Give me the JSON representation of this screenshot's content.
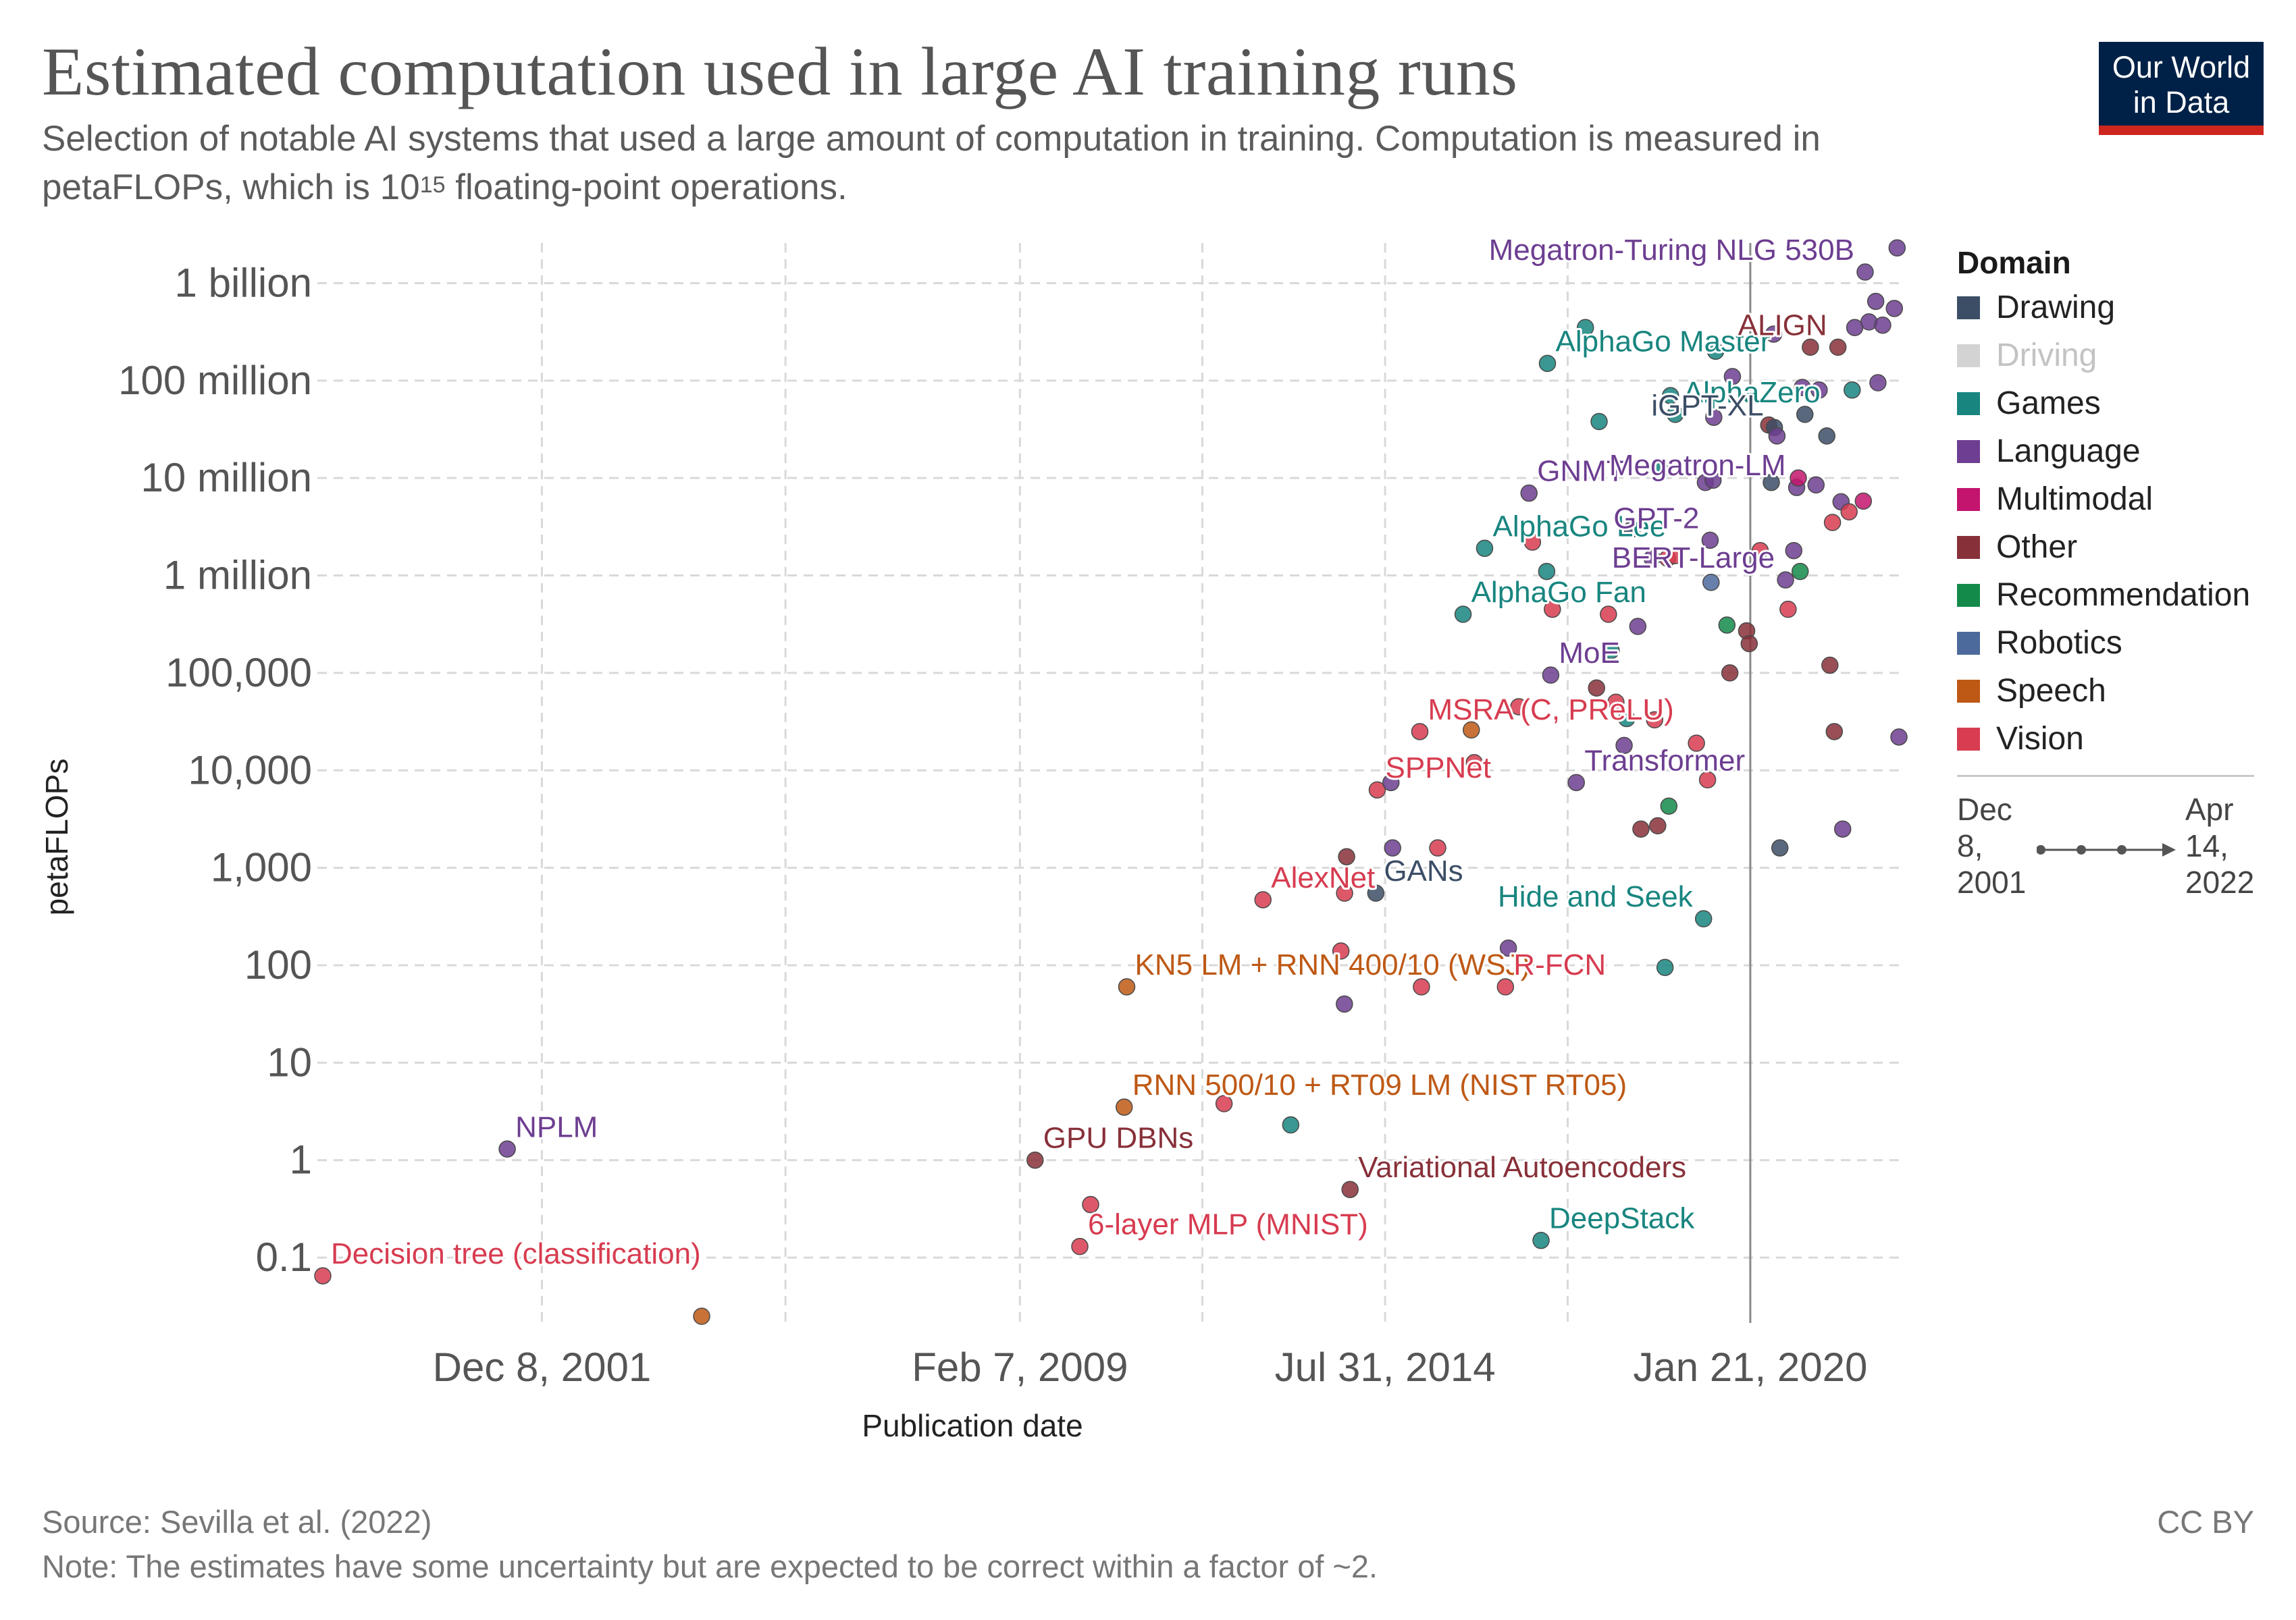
{
  "header": {
    "title": "Estimated computation used in large AI training runs",
    "subtitle_before_sup": "Selection of notable AI systems that used a large amount of computation in training. Computation is measured in petaFLOPs, which is 10",
    "subtitle_sup": "15",
    "subtitle_after_sup": " floating-point operations.",
    "logo_line1": "Our World",
    "logo_line2": "in Data"
  },
  "footer": {
    "source": "Source: Sevilla et al. (2022)",
    "note": "Note: The estimates have some uncertainty but are expected to be correct within a factor of ~2.",
    "license": "CC BY"
  },
  "legend": {
    "title": "Domain",
    "items": [
      {
        "label": "Drawing",
        "color": "#3c4e66",
        "dim": false
      },
      {
        "label": "Driving",
        "color": "#d3d3d3",
        "dim": true
      },
      {
        "label": "Games",
        "color": "#18857f",
        "dim": false
      },
      {
        "label": "Language",
        "color": "#6d3e91",
        "dim": false
      },
      {
        "label": "Multimodal",
        "color": "#c3156d",
        "dim": false
      },
      {
        "label": "Other",
        "color": "#883039",
        "dim": false
      },
      {
        "label": "Recommendation",
        "color": "#138a4a",
        "dim": false
      },
      {
        "label": "Robotics",
        "color": "#4c6a9c",
        "dim": false
      },
      {
        "label": "Speech",
        "color": "#be5915",
        "dim": false
      },
      {
        "label": "Vision",
        "color": "#d73c50",
        "dim": false
      }
    ]
  },
  "timeline": {
    "start": "Dec\n8,\n2001",
    "end": "Apr\n14,\n2022"
  },
  "chart_data": {
    "type": "scatter",
    "xlabel": "Publication date",
    "ylabel": "petaFLOPs",
    "xscale": "date",
    "yscale": "log",
    "xlim": [
      "1998-08-26",
      "2022-04-14"
    ],
    "ylim": [
      0.02,
      2000000000
    ],
    "grid": true,
    "legend_position": "right",
    "x_ticks": [
      {
        "date": "2001-12-08",
        "label": "Dec 8, 2001"
      },
      {
        "date": "2009-02-07",
        "label": "Feb 7, 2009"
      },
      {
        "date": "2014-07-31",
        "label": "Jul 31, 2014"
      },
      {
        "date": "2020-01-21",
        "label": "Jan 21, 2020"
      }
    ],
    "x_minor_grid": [
      "2005-08-03",
      "2011-11-03",
      "2017-04-26"
    ],
    "y_ticks": [
      {
        "value": 0.1,
        "label": "0.1"
      },
      {
        "value": 1,
        "label": "1"
      },
      {
        "value": 10,
        "label": "10"
      },
      {
        "value": 100,
        "label": "100"
      },
      {
        "value": 1000,
        "label": "1,000"
      },
      {
        "value": 10000,
        "label": "10,000"
      },
      {
        "value": 100000,
        "label": "100,000"
      },
      {
        "value": 1000000,
        "label": "1 million"
      },
      {
        "value": 10000000,
        "label": "10 million"
      },
      {
        "value": 100000000,
        "label": "100 million"
      },
      {
        "value": 1000000000,
        "label": "1 billion"
      }
    ],
    "reference_line": "2020-01-21",
    "points": [
      {
        "x": "1998-08-26",
        "y": 0.065,
        "domain": "Vision",
        "label": "Decision tree (classification)"
      },
      {
        "x": "2001-06-01",
        "y": 1.3,
        "domain": "Language",
        "label": "NPLM"
      },
      {
        "x": "2004-05-01",
        "y": 0.025,
        "domain": "Speech"
      },
      {
        "x": "2009-05-01",
        "y": 1.0,
        "domain": "Other",
        "label": "GPU DBNs"
      },
      {
        "x": "2010-01-01",
        "y": 0.13,
        "domain": "Vision",
        "label": "6-layer MLP (MNIST)"
      },
      {
        "x": "2010-03-01",
        "y": 0.35,
        "domain": "Vision"
      },
      {
        "x": "2010-09-01",
        "y": 3.5,
        "domain": "Speech",
        "label": "RNN 500/10 + RT09 LM (NIST RT05)"
      },
      {
        "x": "2010-09-15",
        "y": 60,
        "domain": "Speech",
        "label": "KN5 LM + RNN 400/10 (WSJ)"
      },
      {
        "x": "2012-03-01",
        "y": 3.8,
        "domain": "Vision"
      },
      {
        "x": "2012-09-30",
        "y": 470,
        "domain": "Vision",
        "label": "AlexNet"
      },
      {
        "x": "2013-03-01",
        "y": 2.3,
        "domain": "Games"
      },
      {
        "x": "2013-12-01",
        "y": 140,
        "domain": "Vision"
      },
      {
        "x": "2013-12-20",
        "y": 40,
        "domain": "Language"
      },
      {
        "x": "2013-12-21",
        "y": 550,
        "domain": "Vision"
      },
      {
        "x": "2014-01-20",
        "y": 0.5,
        "domain": "Other",
        "label": "Variational Autoencoders"
      },
      {
        "x": "2014-01-01",
        "y": 1300,
        "domain": "Other"
      },
      {
        "x": "2014-06-10",
        "y": 550,
        "domain": "Drawing",
        "label": "GANs"
      },
      {
        "x": "2014-06-18",
        "y": 6300,
        "domain": "Vision",
        "label": "SPPNet"
      },
      {
        "x": "2014-09-01",
        "y": 7500,
        "domain": "Language"
      },
      {
        "x": "2014-09-10",
        "y": 1600,
        "domain": "Language"
      },
      {
        "x": "2015-02-06",
        "y": 25000,
        "domain": "Vision",
        "label": "MSRA (C, PReLU)"
      },
      {
        "x": "2015-02-15",
        "y": 60,
        "domain": "Vision"
      },
      {
        "x": "2015-05-15",
        "y": 1600,
        "domain": "Vision"
      },
      {
        "x": "2015-10-01",
        "y": 400000,
        "domain": "Games",
        "label": "AlphaGo Fan"
      },
      {
        "x": "2015-11-15",
        "y": 26000,
        "domain": "Speech"
      },
      {
        "x": "2015-12-01",
        "y": 12000,
        "domain": "Vision"
      },
      {
        "x": "2016-01-27",
        "y": 1900000,
        "domain": "Games",
        "label": "AlphaGo Lee"
      },
      {
        "x": "2016-05-20",
        "y": 60,
        "domain": "Vision",
        "label": "R-FCN"
      },
      {
        "x": "2016-06-05",
        "y": 150,
        "domain": "Language"
      },
      {
        "x": "2016-08-01",
        "y": 45000,
        "domain": "Vision"
      },
      {
        "x": "2016-09-26",
        "y": 7000000,
        "domain": "Language",
        "label": "GNMT"
      },
      {
        "x": "2016-10-15",
        "y": 2200000,
        "domain": "Vision"
      },
      {
        "x": "2016-12-01",
        "y": 0.15,
        "domain": "Games",
        "label": "DeepStack"
      },
      {
        "x": "2017-01-23",
        "y": 95000,
        "domain": "Language",
        "label": "MoE"
      },
      {
        "x": "2017-01-01",
        "y": 1100000,
        "domain": "Games"
      },
      {
        "x": "2017-01-05",
        "y": 150000000,
        "domain": "Games",
        "label": "AlphaGo Master"
      },
      {
        "x": "2017-02-01",
        "y": 450000,
        "domain": "Vision"
      },
      {
        "x": "2017-06-12",
        "y": 7500,
        "domain": "Language",
        "label": "Transformer"
      },
      {
        "x": "2017-08-01",
        "y": 350000000,
        "domain": "Games"
      },
      {
        "x": "2017-10-01",
        "y": 70000,
        "domain": "Other"
      },
      {
        "x": "2017-10-15",
        "y": 38000000,
        "domain": "Games"
      },
      {
        "x": "2017-12-05",
        "y": 400000,
        "domain": "Vision"
      },
      {
        "x": "2017-12-20",
        "y": 170000,
        "domain": "Games"
      },
      {
        "x": "2018-01-15",
        "y": 50000,
        "domain": "Vision"
      },
      {
        "x": "2018-03-01",
        "y": 18000,
        "domain": "Language"
      },
      {
        "x": "2018-03-15",
        "y": 34000,
        "domain": "Games"
      },
      {
        "x": "2018-04-15",
        "y": 3000000,
        "domain": "Drawing"
      },
      {
        "x": "2018-05-15",
        "y": 300000,
        "domain": "Language"
      },
      {
        "x": "2018-06-01",
        "y": 2500,
        "domain": "Other"
      },
      {
        "x": "2018-08-01",
        "y": 1500000,
        "domain": "Language"
      },
      {
        "x": "2018-08-15",
        "y": 33000,
        "domain": "Vision"
      },
      {
        "x": "2018-09-01",
        "y": 2700,
        "domain": "Other"
      },
      {
        "x": "2018-09-15",
        "y": 12000000,
        "domain": "Games"
      },
      {
        "x": "2018-10-11",
        "y": 95,
        "domain": "Games"
      },
      {
        "x": "2018-10-25",
        "y": 1500000,
        "domain": "Vision"
      },
      {
        "x": "2018-11-01",
        "y": 4300,
        "domain": "Recommendation"
      },
      {
        "x": "2018-11-10",
        "y": 70000000,
        "domain": "Games"
      },
      {
        "x": "2018-12-05",
        "y": 1600000,
        "domain": "Vision"
      },
      {
        "x": "2018-12-06",
        "y": 45000000,
        "domain": "Games",
        "label": "AlphaZero"
      },
      {
        "x": "2019-04-01",
        "y": 19000,
        "domain": "Vision"
      },
      {
        "x": "2019-05-10",
        "y": 300,
        "domain": "Games",
        "label": "Hide and Seek"
      },
      {
        "x": "2019-05-20",
        "y": 9000000,
        "domain": "Language"
      },
      {
        "x": "2019-06-01",
        "y": 8000,
        "domain": "Vision"
      },
      {
        "x": "2019-06-15",
        "y": 2300000,
        "domain": "Language",
        "label": "GPT-2"
      },
      {
        "x": "2019-06-20",
        "y": 850000,
        "domain": "Robotics"
      },
      {
        "x": "2019-07-01",
        "y": 9500000,
        "domain": "Language"
      },
      {
        "x": "2019-07-05",
        "y": 42000000,
        "domain": "Language"
      },
      {
        "x": "2019-07-15",
        "y": 200000000,
        "domain": "Games"
      },
      {
        "x": "2019-09-15",
        "y": 310000,
        "domain": "Recommendation"
      },
      {
        "x": "2019-10-01",
        "y": 100000,
        "domain": "Other"
      },
      {
        "x": "2019-10-15",
        "y": 110000000,
        "domain": "Language"
      },
      {
        "x": "2020-01-01",
        "y": 270000,
        "domain": "Other"
      },
      {
        "x": "2020-01-15",
        "y": 200000,
        "domain": "Other"
      },
      {
        "x": "2020-03-15",
        "y": 1800000,
        "domain": "Vision"
      },
      {
        "x": "2020-05-01",
        "y": 35000000,
        "domain": "Other"
      },
      {
        "x": "2020-05-15",
        "y": 9000000,
        "domain": "Drawing"
      },
      {
        "x": "2020-05-28",
        "y": 300000000,
        "domain": "Language"
      },
      {
        "x": "2020-06-01",
        "y": 33000000,
        "domain": "Drawing",
        "label": "iGPT-XL"
      },
      {
        "x": "2020-06-15",
        "y": 27000000,
        "domain": "Language"
      },
      {
        "x": "2020-07-01",
        "y": 1600,
        "domain": "Drawing"
      },
      {
        "x": "2020-08-01",
        "y": 900000,
        "domain": "Language",
        "label": "BERT-Large"
      },
      {
        "x": "2020-08-15",
        "y": 450000,
        "domain": "Vision"
      },
      {
        "x": "2020-09-15",
        "y": 1800000,
        "domain": "Language"
      },
      {
        "x": "2020-10-01",
        "y": 8000000,
        "domain": "Language",
        "label": "Megatron-LM"
      },
      {
        "x": "2020-10-10",
        "y": 10000000,
        "domain": "Multimodal"
      },
      {
        "x": "2020-10-20",
        "y": 1100000,
        "domain": "Recommendation"
      },
      {
        "x": "2020-11-01",
        "y": 85000000,
        "domain": "Language"
      },
      {
        "x": "2020-11-15",
        "y": 45000000,
        "domain": "Drawing"
      },
      {
        "x": "2020-12-15",
        "y": 220000000,
        "domain": "Other"
      },
      {
        "x": "2021-01-15",
        "y": 8500000,
        "domain": "Language"
      },
      {
        "x": "2021-02-01",
        "y": 80000000,
        "domain": "Language"
      },
      {
        "x": "2021-03-15",
        "y": 27000000,
        "domain": "Drawing"
      },
      {
        "x": "2021-04-01",
        "y": 120000,
        "domain": "Other"
      },
      {
        "x": "2021-04-15",
        "y": 3500000,
        "domain": "Vision"
      },
      {
        "x": "2021-04-25",
        "y": 25000,
        "domain": "Other"
      },
      {
        "x": "2021-05-15",
        "y": 220000000,
        "domain": "Other",
        "label": "ALIGN"
      },
      {
        "x": "2021-06-01",
        "y": 5700000,
        "domain": "Language"
      },
      {
        "x": "2021-06-10",
        "y": 2500,
        "domain": "Language"
      },
      {
        "x": "2021-07-15",
        "y": 4500000,
        "domain": "Vision"
      },
      {
        "x": "2021-08-01",
        "y": 80000000,
        "domain": "Games"
      },
      {
        "x": "2021-08-15",
        "y": 350000000,
        "domain": "Language"
      },
      {
        "x": "2021-10-01",
        "y": 5800000,
        "domain": "Multimodal"
      },
      {
        "x": "2021-10-11",
        "y": 1300000000,
        "domain": "Language",
        "label": "Megatron-Turing NLG 530B"
      },
      {
        "x": "2021-11-01",
        "y": 400000000,
        "domain": "Language"
      },
      {
        "x": "2021-12-08",
        "y": 650000000,
        "domain": "Language"
      },
      {
        "x": "2021-12-20",
        "y": 95000000,
        "domain": "Language"
      },
      {
        "x": "2022-01-15",
        "y": 370000000,
        "domain": "Language"
      },
      {
        "x": "2022-03-20",
        "y": 550000000,
        "domain": "Language"
      },
      {
        "x": "2022-04-04",
        "y": 2300000000,
        "domain": "Language"
      },
      {
        "x": "2022-04-14",
        "y": 22000,
        "domain": "Language"
      }
    ]
  }
}
